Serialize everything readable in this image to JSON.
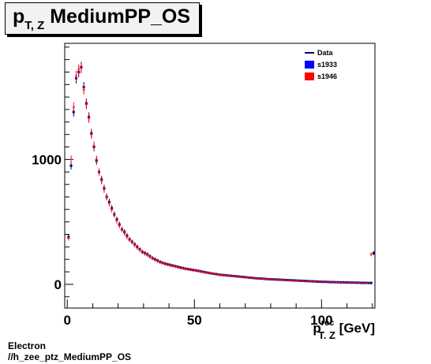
{
  "title": {
    "main": "p",
    "sub": "T, Z",
    "rest": " MediumPP_OS"
  },
  "xlabel": {
    "main": "p",
    "sup": "rec",
    "sub": "T, Z",
    "unit": " [GeV]"
  },
  "footer": {
    "line1": "Electron",
    "line2": "//h_zee_ptz_MediumPP_OS"
  },
  "colors": {
    "data": "#000080",
    "s1933": "#0000ff",
    "s1946": "#ff0000"
  },
  "chart_data": {
    "type": "scatter",
    "xlim": [
      -1,
      121
    ],
    "ylim": [
      -190,
      1930
    ],
    "xticks": [
      {
        "value": 0,
        "label": "0"
      },
      {
        "value": 50,
        "label": "50"
      },
      {
        "value": 100,
        "label": "100"
      }
    ],
    "yticks": [
      {
        "value": 0,
        "label": "0"
      },
      {
        "value": 1000,
        "label": "1000"
      }
    ],
    "legend": {
      "position": "top-right",
      "entries": [
        {
          "label": "Data",
          "style": "line",
          "color": "#000080"
        },
        {
          "label": "s1933",
          "style": "box",
          "color": "#0000ff"
        },
        {
          "label": "s1946",
          "style": "box",
          "color": "#ff0000"
        }
      ]
    },
    "bin_width": 1,
    "x": [
      0.5,
      1.5,
      2.5,
      3.5,
      4.5,
      5.5,
      6.5,
      7.5,
      8.5,
      9.5,
      10.5,
      11.5,
      12.5,
      13.5,
      14.5,
      15.5,
      16.5,
      17.5,
      18.5,
      19.5,
      20.5,
      21.5,
      22.5,
      23.5,
      24.5,
      25.5,
      26.5,
      27.5,
      28.5,
      29.5,
      30.5,
      31.5,
      32.5,
      33.5,
      34.5,
      35.5,
      36.5,
      37.5,
      38.5,
      39.5,
      40.5,
      41.5,
      42.5,
      43.5,
      44.5,
      45.5,
      46.5,
      47.5,
      48.5,
      49.5,
      50.5,
      51.5,
      52.5,
      53.5,
      54.5,
      55.5,
      56.5,
      57.5,
      58.5,
      59.5,
      60.5,
      61.5,
      62.5,
      63.5,
      64.5,
      65.5,
      66.5,
      67.5,
      68.5,
      69.5,
      70.5,
      71.5,
      72.5,
      73.5,
      74.5,
      75.5,
      76.5,
      77.5,
      78.5,
      79.5,
      80.5,
      81.5,
      82.5,
      83.5,
      84.5,
      85.5,
      86.5,
      87.5,
      88.5,
      89.5,
      90.5,
      91.5,
      92.5,
      93.5,
      94.5,
      95.5,
      96.5,
      97.5,
      98.5,
      99.5,
      100.5,
      101.5,
      102.5,
      103.5,
      104.5,
      105.5,
      106.5,
      107.5,
      108.5,
      109.5,
      110.5,
      111.5,
      112.5,
      113.5,
      114.5,
      115.5,
      116.5,
      117.5,
      118.5,
      119.5,
      120.5
    ],
    "series": [
      {
        "name": "Data",
        "style": "points",
        "color": "#000080",
        "values": [
          380,
          950,
          1380,
          1650,
          1700,
          1740,
          1580,
          1450,
          1340,
          1210,
          1100,
          990,
          900,
          840,
          770,
          700,
          660,
          610,
          560,
          520,
          480,
          440,
          420,
          390,
          360,
          340,
          320,
          300,
          280,
          260,
          250,
          240,
          225,
          210,
          200,
          190,
          180,
          172,
          165,
          160,
          155,
          150,
          145,
          140,
          135,
          130,
          125,
          122,
          118,
          115,
          112,
          108,
          104,
          100,
          96,
          92,
          88,
          85,
          82,
          79,
          76,
          74,
          72,
          70,
          68,
          66,
          64,
          62,
          60,
          58,
          56,
          54,
          52,
          50,
          48,
          47,
          46,
          44,
          42,
          41,
          40,
          39,
          38,
          37,
          36,
          35,
          34,
          33,
          32,
          31,
          30,
          29,
          28,
          27,
          26,
          25,
          24,
          23,
          22,
          21,
          20,
          20,
          19,
          18,
          18,
          17,
          17,
          16,
          16,
          15,
          15,
          14,
          14,
          13,
          13,
          12,
          12,
          12,
          11,
          11,
          250
        ]
      },
      {
        "name": "s1946",
        "style": "marker",
        "color": "#ff0000",
        "values": [
          370,
          1000,
          1420,
          1670,
          1720,
          1730,
          1560,
          1440,
          1330,
          1200,
          1110,
          1000,
          900,
          830,
          760,
          700,
          650,
          600,
          560,
          510,
          470,
          440,
          410,
          380,
          360,
          340,
          315,
          295,
          275,
          260,
          245,
          235,
          220,
          210,
          195,
          185,
          178,
          170,
          163,
          158,
          152,
          147,
          142,
          137,
          132,
          127,
          123,
          120,
          116,
          112,
          109,
          105,
          101,
          97,
          94,
          90,
          87,
          84,
          80,
          78,
          75,
          73,
          70,
          68,
          66,
          64,
          62,
          60,
          58,
          56,
          55,
          53,
          51,
          49,
          48,
          46,
          45,
          43,
          42,
          40,
          39,
          38,
          37,
          36,
          35,
          34,
          33,
          32,
          31,
          30,
          29,
          28,
          27,
          26,
          25,
          24,
          23,
          22,
          22,
          21,
          20,
          19,
          19,
          18,
          18,
          17,
          16,
          16,
          15,
          15,
          14,
          14,
          13,
          13,
          12,
          12,
          12,
          11,
          11,
          240
        ]
      }
    ]
  }
}
